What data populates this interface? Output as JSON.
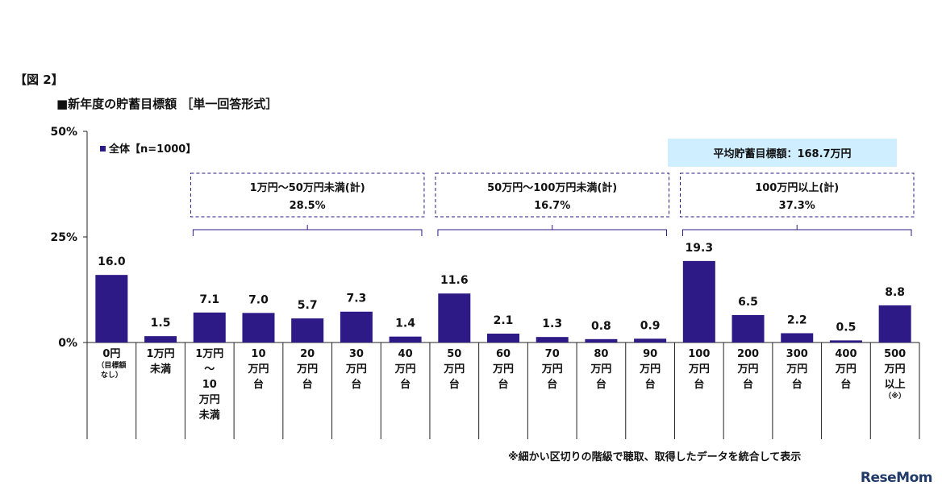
{
  "figure_label": "【図 2】",
  "title": "■新年度の貯蓄目標額 ［単一回答形式］",
  "footnote": "※細かい区切りの階級で聴取、取得したデータを統合して表示",
  "watermark": "ReseMom",
  "colors": {
    "bar": "#2e1a87",
    "average_box": "#cfeeff",
    "bracket": "#2e1a87"
  },
  "chart_data": {
    "type": "bar",
    "yticks": [
      "50%",
      "25%",
      "0%"
    ],
    "ylim": [
      0,
      50
    ],
    "grid": false,
    "legend": {
      "label": "全体【n=1000】",
      "placement": "top-left"
    },
    "categories": [
      {
        "lines": [
          "0円"
        ],
        "small": [
          "（目標額",
          "なし）"
        ]
      },
      {
        "lines": [
          "1万円",
          "未満"
        ]
      },
      {
        "lines": [
          "1万円",
          "～",
          "10",
          "万円",
          "未満"
        ]
      },
      {
        "lines": [
          "10",
          "万円",
          "台"
        ]
      },
      {
        "lines": [
          "20",
          "万円",
          "台"
        ]
      },
      {
        "lines": [
          "30",
          "万円",
          "台"
        ]
      },
      {
        "lines": [
          "40",
          "万円",
          "台"
        ]
      },
      {
        "lines": [
          "50",
          "万円",
          "台"
        ]
      },
      {
        "lines": [
          "60",
          "万円",
          "台"
        ]
      },
      {
        "lines": [
          "70",
          "万円",
          "台"
        ]
      },
      {
        "lines": [
          "80",
          "万円",
          "台"
        ]
      },
      {
        "lines": [
          "90",
          "万円",
          "台"
        ]
      },
      {
        "lines": [
          "100",
          "万円",
          "台"
        ]
      },
      {
        "lines": [
          "200",
          "万円",
          "台"
        ]
      },
      {
        "lines": [
          "300",
          "万円",
          "台"
        ]
      },
      {
        "lines": [
          "400",
          "万円",
          "台"
        ]
      },
      {
        "lines": [
          "500",
          "万円",
          "以上"
        ],
        "small": [
          "（※）"
        ]
      }
    ],
    "series": [
      {
        "values": [
          16.0,
          1.5,
          7.1,
          7.0,
          5.7,
          7.3,
          1.4,
          11.6,
          2.1,
          1.3,
          0.8,
          0.9,
          19.3,
          6.5,
          2.2,
          0.5,
          8.8
        ]
      }
    ],
    "value_labels": [
      "16.0",
      "1.5",
      "7.1",
      "7.0",
      "5.7",
      "7.3",
      "1.4",
      "11.6",
      "2.1",
      "1.3",
      "0.8",
      "0.9",
      "19.3",
      "6.5",
      "2.2",
      "0.5",
      "8.8"
    ],
    "groups": [
      {
        "label": "1万円～50万円未満(計)",
        "value": "28.5%",
        "from": 2,
        "to": 6
      },
      {
        "label": "50万円～100万円未満(計)",
        "value": "16.7%",
        "from": 7,
        "to": 11
      },
      {
        "label": "100万円以上(計)",
        "value": "37.3%",
        "from": 12,
        "to": 16
      }
    ],
    "average": {
      "label": "平均貯蓄目標額：168.7万円"
    }
  }
}
